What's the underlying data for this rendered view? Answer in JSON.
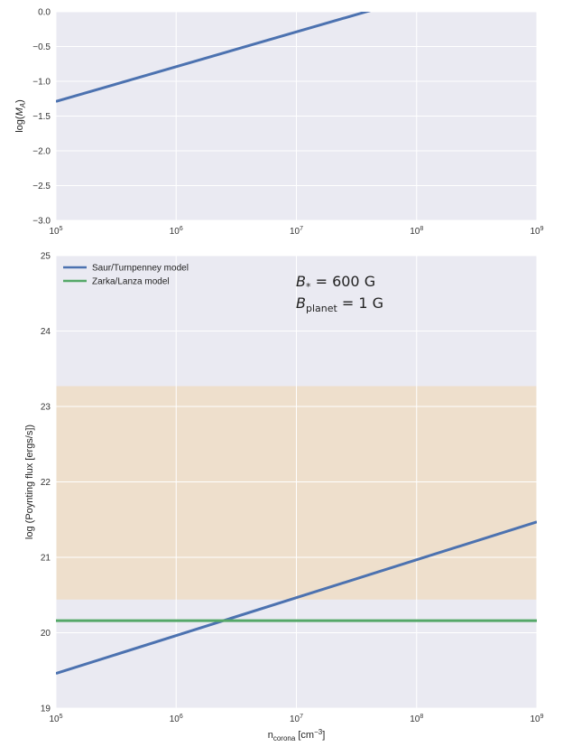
{
  "chart_data": [
    {
      "type": "line",
      "xscale": "log",
      "xlim": [
        100000,
        1000000000
      ],
      "ylim": [
        -3.0,
        0.0
      ],
      "xticks": [
        {
          "value": 100000,
          "base": "10",
          "exp": "5"
        },
        {
          "value": 1000000,
          "base": "10",
          "exp": "6"
        },
        {
          "value": 10000000,
          "base": "10",
          "exp": "7"
        },
        {
          "value": 100000000,
          "base": "10",
          "exp": "8"
        },
        {
          "value": 1000000000,
          "base": "10",
          "exp": "9"
        }
      ],
      "yticks": [
        {
          "value": -3.0,
          "label": "−3.0"
        },
        {
          "value": -2.5,
          "label": "−2.5"
        },
        {
          "value": -2.0,
          "label": "−2.0"
        },
        {
          "value": -1.5,
          "label": "−1.5"
        },
        {
          "value": -1.0,
          "label": "−1.0"
        },
        {
          "value": -0.5,
          "label": "−0.5"
        },
        {
          "value": 0.0,
          "label": "0.0"
        }
      ],
      "ylabel": {
        "prefix": "log(",
        "symbol": "M",
        "sub": "A",
        "suffix": ")"
      },
      "xlabel": "",
      "grid": true,
      "series": [
        {
          "color": "#4c72b0",
          "x": [
            100000,
            1000000000
          ],
          "y": [
            -1.29,
            0.71
          ]
        }
      ]
    },
    {
      "type": "line",
      "xscale": "log",
      "xlim": [
        100000,
        1000000000
      ],
      "ylim": [
        19,
        25
      ],
      "xticks": [
        {
          "value": 100000,
          "base": "10",
          "exp": "5"
        },
        {
          "value": 1000000,
          "base": "10",
          "exp": "6"
        },
        {
          "value": 10000000,
          "base": "10",
          "exp": "7"
        },
        {
          "value": 100000000,
          "base": "10",
          "exp": "8"
        },
        {
          "value": 1000000000,
          "base": "10",
          "exp": "9"
        }
      ],
      "yticks": [
        {
          "value": 19,
          "label": "19"
        },
        {
          "value": 20,
          "label": "20"
        },
        {
          "value": 21,
          "label": "21"
        },
        {
          "value": 22,
          "label": "22"
        },
        {
          "value": 23,
          "label": "23"
        },
        {
          "value": 24,
          "label": "24"
        },
        {
          "value": 25,
          "label": "25"
        }
      ],
      "ylabel": "log (Poynting flux [ergs/s])",
      "xlabel": {
        "base": "n",
        "sub": "corona",
        "unit_prefix": " [cm",
        "unit_sup": "−3",
        "unit_suffix": "]"
      },
      "grid": true,
      "legend_position": "top-left",
      "shaded_band": {
        "y": [
          20.44,
          23.27
        ],
        "color": "#eedfcc"
      },
      "series": [
        {
          "name": "Saur/Turnpenney model",
          "color": "#4c72b0",
          "x": [
            100000,
            1000000000
          ],
          "y": [
            19.46,
            21.47
          ]
        },
        {
          "name": "Zarka/Lanza model",
          "color": "#55a868",
          "x": [
            100000,
            1000000000
          ],
          "y": [
            20.16,
            20.16
          ]
        }
      ],
      "annotations": [
        {
          "symbol": "B",
          "sub": "*",
          "rest": " = 600 G"
        },
        {
          "symbol": "B",
          "sub": "planet",
          "rest": " = 1 G"
        }
      ]
    }
  ]
}
